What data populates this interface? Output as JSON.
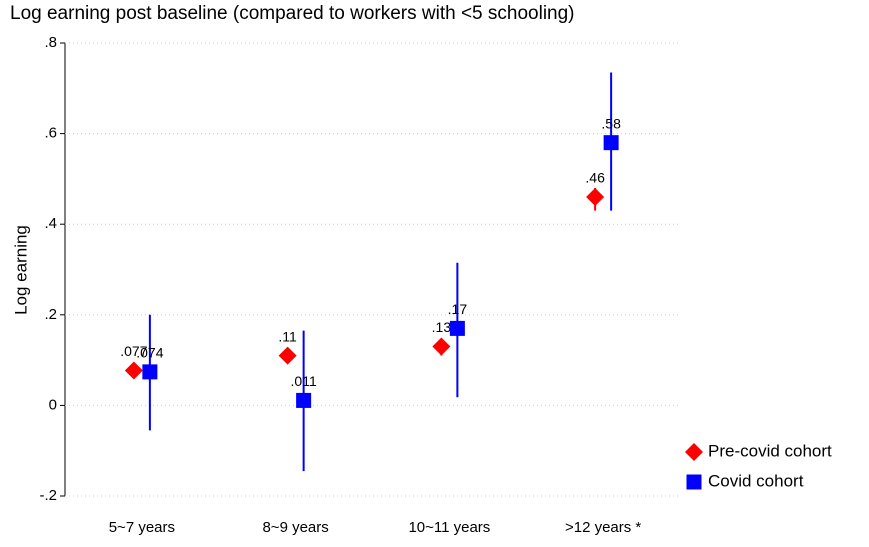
{
  "chart_data": {
    "type": "coefplot",
    "title": "Log earning post baseline (compared to workers with <5 schooling)",
    "y_label": "Log earning",
    "categories": [
      "5~7 years",
      "8~9 years",
      "10~11 years",
      ">12 years *"
    ],
    "series": [
      {
        "name": "Pre-covid cohort",
        "color": "#ff0000",
        "marker": "diamond",
        "values": [
          0.077,
          0.11,
          0.13,
          0.46
        ],
        "value_labels": [
          ".077",
          ".11",
          ".13",
          ".46"
        ],
        "low": [
          0.065,
          0.095,
          0.11,
          0.43
        ],
        "high": [
          0.09,
          0.125,
          0.145,
          0.48
        ]
      },
      {
        "name": "Covid cohort",
        "color": "#0000ff",
        "marker": "square",
        "values": [
          0.074,
          0.011,
          0.17,
          0.58
        ],
        "value_labels": [
          ".074",
          ".011",
          ".17",
          ".58"
        ],
        "low": [
          -0.055,
          -0.145,
          0.018,
          0.43
        ],
        "high": [
          0.2,
          0.165,
          0.315,
          0.735
        ]
      }
    ],
    "ylim": [
      -0.2,
      0.8
    ],
    "yticks": [
      {
        "value": -0.2,
        "label": "-.2"
      },
      0,
      {
        "value": 0.2,
        "label": ".2"
      },
      {
        "value": 0.4,
        "label": ".4"
      },
      {
        "value": 0.6,
        "label": ".6"
      },
      {
        "value": 0.8,
        "label": ".8"
      }
    ],
    "grid": true,
    "legend": "right"
  }
}
